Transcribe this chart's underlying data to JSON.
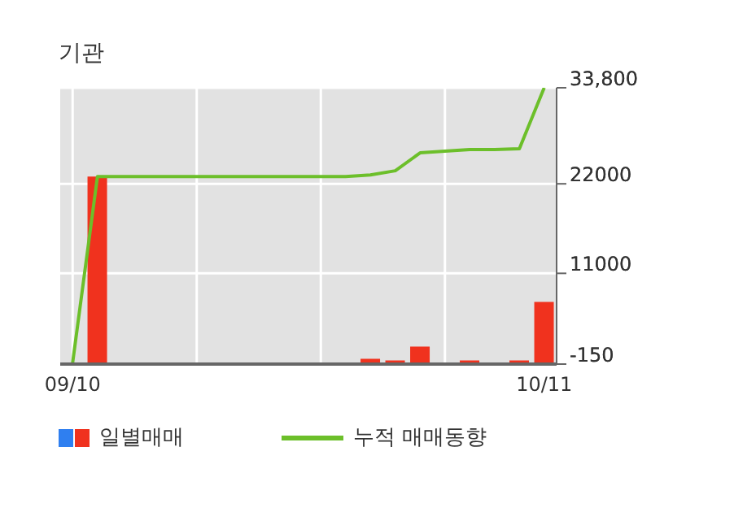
{
  "chart_data": {
    "type": "bar",
    "title": "기관",
    "categories": [
      "09/10",
      null,
      null,
      null,
      null,
      null,
      null,
      null,
      null,
      null,
      null,
      null,
      null,
      null,
      null,
      null,
      null,
      null,
      null,
      "10/11"
    ],
    "series": [
      {
        "name": "일별매매",
        "color": "#f0321e",
        "values": [
          0,
          22900,
          0,
          0,
          0,
          0,
          0,
          0,
          0,
          0,
          0,
          0,
          500,
          300,
          2000,
          0,
          300,
          0,
          300,
          7500
        ]
      },
      {
        "name": "누적 매매동향",
        "type": "line",
        "color": "#6cbf2a",
        "values": [
          0,
          22900,
          22900,
          22900,
          22900,
          22900,
          22900,
          22900,
          22900,
          22900,
          22900,
          22900,
          23100,
          23600,
          25800,
          26000,
          26200,
          26200,
          26300,
          33800
        ]
      }
    ],
    "ylim": [
      -150,
      33800
    ],
    "yticks": [
      {
        "value": 33800,
        "label": "33,800"
      },
      22000,
      11000,
      -150
    ],
    "grid": true,
    "legend": "bottom",
    "marker": "none"
  }
}
